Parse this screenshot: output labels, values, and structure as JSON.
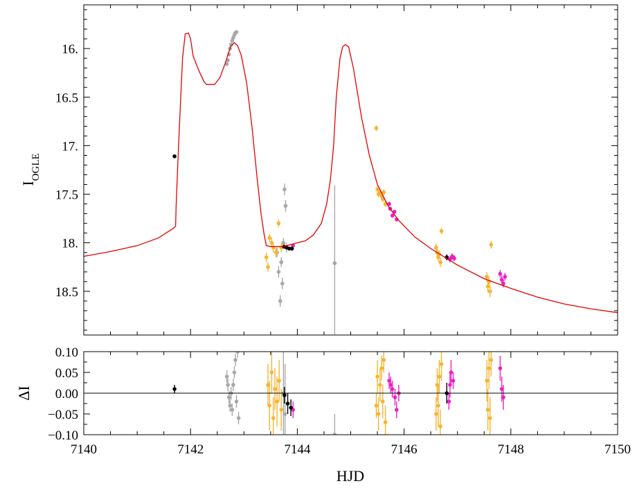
{
  "colors": {
    "model": "#e00000",
    "gray": "#a8a8a8",
    "orange": "#f7b432",
    "magenta": "#ee1ec3",
    "black": "#000000"
  },
  "chart_data": [
    {
      "type": "scatter",
      "panel": "light-curve",
      "title": "",
      "xlabel": "",
      "ylabel": "I",
      "ylabel_sub": "OGLE",
      "xlim": [
        7140,
        7150
      ],
      "ylim": [
        18.95,
        15.55
      ],
      "y_inverted": true,
      "yticks": [
        16.0,
        16.5,
        17.0,
        17.5,
        18.0,
        18.5
      ],
      "ytick_labels": [
        "16.",
        "16.5",
        "17.",
        "17.5",
        "18.",
        "18.5"
      ],
      "xticks": [
        7140,
        7142,
        7144,
        7146,
        7148,
        7150
      ],
      "grid": false,
      "model": [
        [
          7140.0,
          18.14
        ],
        [
          7140.5,
          18.09
        ],
        [
          7141.0,
          18.03
        ],
        [
          7141.4,
          17.95
        ],
        [
          7141.68,
          17.85
        ],
        [
          7141.72,
          17.83
        ],
        [
          7141.73,
          17.62
        ],
        [
          7141.76,
          17.2
        ],
        [
          7141.8,
          16.7
        ],
        [
          7141.85,
          16.1
        ],
        [
          7141.9,
          15.85
        ],
        [
          7141.96,
          15.84
        ],
        [
          7142.0,
          15.9
        ],
        [
          7142.05,
          16.08
        ],
        [
          7142.15,
          16.22
        ],
        [
          7142.25,
          16.34
        ],
        [
          7142.3,
          16.37
        ],
        [
          7142.45,
          16.37
        ],
        [
          7142.55,
          16.3
        ],
        [
          7142.65,
          16.15
        ],
        [
          7142.75,
          15.98
        ],
        [
          7142.82,
          15.94
        ],
        [
          7142.88,
          15.97
        ],
        [
          7142.95,
          16.07
        ],
        [
          7143.05,
          16.35
        ],
        [
          7143.15,
          16.8
        ],
        [
          7143.25,
          17.35
        ],
        [
          7143.32,
          17.7
        ],
        [
          7143.38,
          17.92
        ],
        [
          7143.42,
          18.03
        ],
        [
          7143.5,
          18.04
        ],
        [
          7143.7,
          18.04
        ],
        [
          7143.8,
          18.03
        ],
        [
          7144.0,
          18.0
        ],
        [
          7144.15,
          17.98
        ],
        [
          7144.3,
          17.92
        ],
        [
          7144.45,
          17.8
        ],
        [
          7144.55,
          17.6
        ],
        [
          7144.62,
          17.35
        ],
        [
          7144.68,
          17.0
        ],
        [
          7144.73,
          16.5
        ],
        [
          7144.8,
          16.1
        ],
        [
          7144.85,
          15.98
        ],
        [
          7144.9,
          15.96
        ],
        [
          7144.96,
          15.98
        ],
        [
          7145.05,
          16.2
        ],
        [
          7145.2,
          16.7
        ],
        [
          7145.35,
          17.1
        ],
        [
          7145.5,
          17.4
        ],
        [
          7145.7,
          17.62
        ],
        [
          7145.9,
          17.77
        ],
        [
          7146.2,
          17.94
        ],
        [
          7146.5,
          18.06
        ],
        [
          7147.0,
          18.23
        ],
        [
          7147.5,
          18.37
        ],
        [
          7148.0,
          18.47
        ],
        [
          7148.5,
          18.56
        ],
        [
          7149.0,
          18.63
        ],
        [
          7149.5,
          18.68
        ],
        [
          7150.0,
          18.72
        ]
      ],
      "series": [
        {
          "color": "gray",
          "points": [
            [
              7142.68,
              16.16,
              0.02
            ],
            [
              7142.7,
              16.12,
              0.02
            ],
            [
              7142.72,
              16.06,
              0.02
            ],
            [
              7142.74,
              16.0,
              0.02
            ],
            [
              7142.76,
              15.96,
              0.02
            ],
            [
              7142.78,
              15.92,
              0.02
            ],
            [
              7142.8,
              15.89,
              0.02
            ],
            [
              7142.82,
              15.86,
              0.02
            ],
            [
              7142.84,
              15.84,
              0.02
            ],
            [
              7142.86,
              15.83,
              0.02
            ],
            [
              7143.62,
              18.1,
              0.05
            ],
            [
              7143.65,
              18.3,
              0.06
            ],
            [
              7143.68,
              18.6,
              0.06
            ],
            [
              7143.7,
              18.2,
              0.05
            ],
            [
              7143.72,
              18.42,
              0.06
            ],
            [
              7143.74,
              18.0,
              0.05
            ],
            [
              7143.76,
              17.45,
              0.06
            ],
            [
              7143.78,
              17.62,
              0.06
            ],
            [
              7143.8,
              18.05,
              0.05
            ],
            [
              7144.7,
              18.21,
              0.8
            ]
          ]
        },
        {
          "color": "orange",
          "points": [
            [
              7143.42,
              18.15,
              0.05
            ],
            [
              7143.45,
              18.25,
              0.05
            ],
            [
              7143.48,
              17.95,
              0.04
            ],
            [
              7143.52,
              18.0,
              0.05
            ],
            [
              7143.55,
              18.05,
              0.05
            ],
            [
              7143.6,
              18.1,
              0.05
            ],
            [
              7143.65,
              17.8,
              0.04
            ],
            [
              7143.7,
              18.05,
              0.05
            ],
            [
              7145.48,
              16.82,
              0.03
            ],
            [
              7145.5,
              17.45,
              0.03
            ],
            [
              7145.52,
              17.5,
              0.03
            ],
            [
              7145.55,
              17.48,
              0.03
            ],
            [
              7145.58,
              17.52,
              0.03
            ],
            [
              7145.6,
              17.55,
              0.03
            ],
            [
              7145.62,
              17.48,
              0.03
            ],
            [
              7145.65,
              17.6,
              0.03
            ],
            [
              7146.6,
              18.05,
              0.04
            ],
            [
              7146.62,
              18.1,
              0.04
            ],
            [
              7146.64,
              18.15,
              0.04
            ],
            [
              7146.66,
              18.12,
              0.04
            ],
            [
              7146.68,
              18.2,
              0.05
            ],
            [
              7146.7,
              17.88,
              0.03
            ],
            [
              7147.55,
              18.35,
              0.05
            ],
            [
              7147.57,
              18.45,
              0.06
            ],
            [
              7147.59,
              18.4,
              0.05
            ],
            [
              7147.61,
              18.5,
              0.06
            ],
            [
              7147.63,
              18.02,
              0.04
            ]
          ]
        },
        {
          "color": "magenta",
          "points": [
            [
              7143.92,
              18.03,
              0.02
            ],
            [
              7145.72,
              17.6,
              0.02
            ],
            [
              7145.74,
              17.65,
              0.02
            ],
            [
              7145.78,
              17.72,
              0.02
            ],
            [
              7145.82,
              17.68,
              0.02
            ],
            [
              7145.86,
              17.76,
              0.02
            ],
            [
              7146.86,
              18.17,
              0.03
            ],
            [
              7146.9,
              18.14,
              0.03
            ],
            [
              7146.94,
              18.16,
              0.03
            ],
            [
              7147.8,
              18.32,
              0.04
            ],
            [
              7147.83,
              18.38,
              0.04
            ],
            [
              7147.86,
              18.42,
              0.04
            ],
            [
              7147.89,
              18.35,
              0.04
            ]
          ]
        },
        {
          "color": "black",
          "points": [
            [
              7141.7,
              17.11,
              0.01
            ],
            [
              7143.75,
              18.04,
              0.02
            ],
            [
              7143.8,
              18.05,
              0.02
            ],
            [
              7143.85,
              18.06,
              0.02
            ],
            [
              7143.9,
              18.06,
              0.02
            ],
            [
              7146.8,
              18.15,
              0.03
            ]
          ]
        }
      ]
    },
    {
      "type": "scatter",
      "panel": "residuals",
      "title": "",
      "xlabel": "HJD",
      "ylabel": "ΔI",
      "xlim": [
        7140,
        7150
      ],
      "ylim": [
        -0.1,
        0.1
      ],
      "yticks": [
        0.1,
        0.05,
        0.0,
        -0.05,
        -0.1
      ],
      "ytick_labels": [
        "0.10",
        "0.05",
        "0.00",
        "−0.05",
        "−0.10"
      ],
      "xticks": [
        7140,
        7142,
        7144,
        7146,
        7148,
        7150
      ],
      "xtick_labels": [
        "7140",
        "7142",
        "7144",
        "7146",
        "7148",
        "7150"
      ],
      "zero_line": 0.0,
      "grid": false,
      "series": [
        {
          "color": "gray",
          "points": [
            [
              7142.68,
              0.04,
              0.015
            ],
            [
              7142.7,
              0.02,
              0.015
            ],
            [
              7142.72,
              -0.01,
              0.015
            ],
            [
              7142.74,
              -0.03,
              0.015
            ],
            [
              7142.76,
              0.0,
              0.015
            ],
            [
              7142.78,
              -0.04,
              0.015
            ],
            [
              7142.8,
              0.02,
              0.015
            ],
            [
              7142.82,
              0.05,
              0.015
            ],
            [
              7142.84,
              0.08,
              0.015
            ],
            [
              7142.86,
              -0.02,
              0.015
            ],
            [
              7142.88,
              0.1,
              0.015
            ],
            [
              7142.9,
              -0.06,
              0.015
            ],
            [
              7143.74,
              0.0,
              0.12
            ],
            [
              7143.77,
              -0.05,
              0.12
            ],
            [
              7144.7,
              -0.1,
              0.05
            ]
          ]
        },
        {
          "color": "orange",
          "points": [
            [
              7143.45,
              0.02,
              0.05
            ],
            [
              7143.48,
              -0.03,
              0.06
            ],
            [
              7143.52,
              0.05,
              0.05
            ],
            [
              7143.55,
              -0.06,
              0.05
            ],
            [
              7143.58,
              0.01,
              0.05
            ],
            [
              7143.62,
              -0.02,
              0.06
            ],
            [
              7143.66,
              0.03,
              0.05
            ],
            [
              7143.7,
              -0.04,
              0.05
            ],
            [
              7145.48,
              -0.03,
              0.03
            ],
            [
              7145.5,
              0.04,
              0.04
            ],
            [
              7145.52,
              -0.05,
              0.04
            ],
            [
              7145.55,
              0.02,
              0.04
            ],
            [
              7145.58,
              0.06,
              0.03
            ],
            [
              7145.6,
              -0.02,
              0.04
            ],
            [
              7145.62,
              0.08,
              0.03
            ],
            [
              7145.65,
              -0.07,
              0.04
            ],
            [
              7146.6,
              -0.05,
              0.04
            ],
            [
              7146.62,
              0.02,
              0.04
            ],
            [
              7146.64,
              -0.03,
              0.05
            ],
            [
              7146.66,
              0.04,
              0.04
            ],
            [
              7146.68,
              -0.08,
              0.04
            ],
            [
              7146.7,
              0.07,
              0.04
            ],
            [
              7147.55,
              0.03,
              0.05
            ],
            [
              7147.57,
              -0.04,
              0.05
            ],
            [
              7147.59,
              0.06,
              0.05
            ],
            [
              7147.61,
              -0.06,
              0.05
            ],
            [
              7147.63,
              0.08,
              0.04
            ]
          ]
        },
        {
          "color": "magenta",
          "points": [
            [
              7143.92,
              -0.04,
              0.02
            ],
            [
              7145.72,
              0.03,
              0.02
            ],
            [
              7145.75,
              0.02,
              0.02
            ],
            [
              7145.78,
              0.01,
              0.02
            ],
            [
              7145.83,
              -0.01,
              0.02
            ],
            [
              7145.86,
              -0.04,
              0.02
            ],
            [
              7145.9,
              0.0,
              0.02
            ],
            [
              7146.84,
              -0.02,
              0.02
            ],
            [
              7146.86,
              0.02,
              0.03
            ],
            [
              7146.88,
              0.05,
              0.03
            ],
            [
              7146.92,
              0.03,
              0.02
            ],
            [
              7147.8,
              0.06,
              0.03
            ],
            [
              7147.83,
              0.01,
              0.03
            ],
            [
              7147.86,
              -0.01,
              0.03
            ]
          ]
        },
        {
          "color": "black",
          "points": [
            [
              7141.7,
              0.01,
              0.01
            ],
            [
              7143.76,
              -0.005,
              0.02
            ],
            [
              7143.82,
              -0.025,
              0.025
            ],
            [
              7143.88,
              -0.035,
              0.02
            ],
            [
              7146.8,
              0.0,
              0.025
            ]
          ]
        }
      ]
    }
  ]
}
